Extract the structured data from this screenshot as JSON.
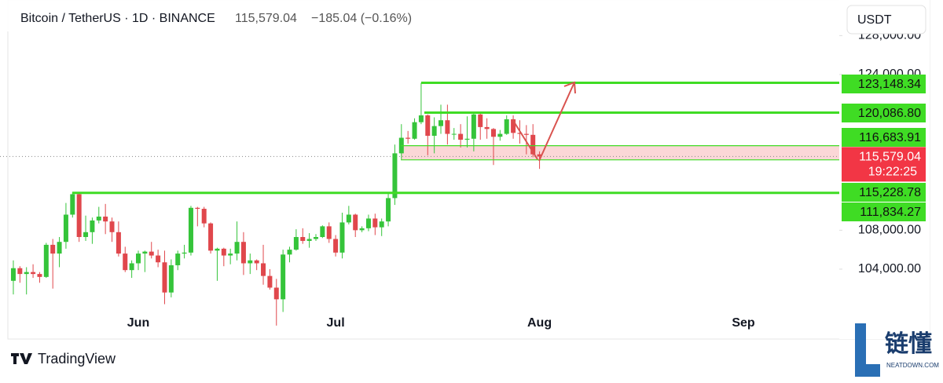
{
  "chart_data": {
    "type": "candlestick",
    "title": "Bitcoin / TetherUS · 1D · BINANCE",
    "change": "−185.04 (−0.16%)",
    "currency": "USDT",
    "brand": "TradingView",
    "watermark": "链懂",
    "watermark_sub": "NEATDOWN.COM",
    "up_color": "#35c43a",
    "down_color": "#e0474c",
    "level_color": "#3fdc24",
    "current_color": "#f23645",
    "current_price": {
      "value": 115579.04,
      "label": "115,579.04",
      "countdown": "19:22:25"
    },
    "levels": [
      {
        "value": 123148.34,
        "label": "123,148.34"
      },
      {
        "value": 120086.8,
        "label": "120,086.80"
      },
      {
        "value": 116683.91,
        "label": "116,683.91"
      },
      {
        "value": 115228.78,
        "label": "115,228.78"
      },
      {
        "value": 111834.27,
        "label": "111,834.27"
      }
    ],
    "zone": [
      115228.78,
      116683.91
    ],
    "ylim": [
      99800,
      128430
    ],
    "yticks": [
      {
        "value": 104000,
        "label": "104,000.00"
      },
      {
        "value": 108000,
        "label": "108,000.00"
      },
      {
        "value": 124000,
        "label": "124,000.00"
      },
      {
        "value": 128000,
        "label": "128,000.00"
      }
    ],
    "categories": [
      null,
      null,
      null,
      null,
      null,
      null,
      null,
      null,
      null,
      null,
      null,
      null,
      null,
      null,
      null,
      null,
      null,
      null,
      null,
      "Jun",
      null,
      null,
      null,
      null,
      null,
      null,
      null,
      null,
      null,
      null,
      null,
      null,
      null,
      null,
      null,
      null,
      null,
      null,
      null,
      null,
      null,
      null,
      null,
      null,
      null,
      null,
      null,
      null,
      null,
      "Jul",
      null,
      null,
      null,
      null,
      null,
      null,
      null,
      null,
      null,
      null,
      null,
      null,
      null,
      null,
      null,
      null,
      null,
      null,
      null,
      null,
      null,
      null,
      null,
      null,
      null,
      null,
      null,
      null,
      null,
      null,
      "Aug",
      null,
      null,
      null,
      null,
      null,
      null,
      null,
      null,
      null,
      null,
      null,
      null,
      null,
      null,
      null,
      null,
      null,
      null,
      null,
      null,
      null,
      null,
      null,
      null,
      null,
      null,
      null,
      null,
      null,
      null,
      "Sep",
      null,
      null,
      null,
      null,
      null,
      null,
      null,
      null,
      null,
      null,
      null,
      null,
      null,
      null
    ],
    "open": [
      102800,
      104100,
      103500,
      103700,
      103500,
      103200,
      106500,
      105600,
      106800,
      109600,
      111700,
      107300,
      107800,
      109000,
      109400,
      108900,
      107800,
      105600,
      103900,
      104600,
      105600,
      105800,
      105400,
      104700,
      101600,
      104400,
      105600,
      105700,
      110300,
      110200,
      108700,
      105900,
      106100,
      105400,
      105600,
      106800,
      104600,
      104900,
      104600,
      103300,
      102100,
      100900,
      105500,
      106000,
      107300,
      106900,
      107100,
      107300,
      108400,
      107100,
      105700,
      108800,
      109600,
      108000,
      108200,
      109200,
      108300,
      108900,
      111300,
      115900,
      117500,
      117400,
      119100,
      119800,
      117700,
      118700,
      119300,
      117900,
      117900,
      117300,
      117400,
      119900,
      118600,
      118400,
      117600,
      117900,
      119400,
      118000,
      117900,
      117800,
      115800,
      null,
      null,
      null,
      null,
      null,
      null,
      null,
      null,
      null,
      null,
      null,
      null,
      null,
      null,
      null,
      null,
      null,
      null,
      null,
      null,
      null,
      null,
      null,
      null,
      null,
      null,
      null,
      null,
      null,
      null,
      null,
      null,
      null,
      null,
      null,
      null,
      null,
      null,
      null,
      null,
      null,
      null,
      null,
      null,
      null
    ],
    "high": [
      104900,
      104300,
      104200,
      104500,
      103700,
      106700,
      107100,
      107300,
      110800,
      111900,
      111800,
      109500,
      109300,
      110400,
      110700,
      109300,
      108900,
      106300,
      104900,
      105900,
      105900,
      106800,
      106000,
      105900,
      105000,
      105900,
      106500,
      110500,
      110400,
      110400,
      108800,
      106200,
      106200,
      106100,
      108900,
      107800,
      105600,
      105000,
      106500,
      104000,
      103000,
      106000,
      106300,
      108100,
      108200,
      107700,
      107600,
      108500,
      108800,
      107500,
      109800,
      110500,
      109700,
      108400,
      109600,
      109700,
      109200,
      111900,
      116800,
      118900,
      118200,
      119500,
      123148.34,
      119900,
      119600,
      120900,
      120900,
      118500,
      118900,
      119700,
      120200,
      120100,
      119500,
      118500,
      118300,
      119800,
      119800,
      119300,
      118800,
      118900,
      116100,
      null,
      null,
      null,
      null,
      null,
      null,
      null,
      null,
      null,
      null,
      null,
      null,
      null,
      null,
      null,
      null,
      null,
      null,
      null,
      null,
      null,
      null,
      null,
      null,
      null,
      null,
      null,
      null,
      null,
      null,
      null,
      null,
      null,
      null,
      null,
      null,
      null,
      null,
      null,
      null,
      null,
      null,
      null,
      null,
      null
    ],
    "low": [
      101400,
      102600,
      101400,
      103100,
      102600,
      103100,
      102000,
      104200,
      106100,
      109300,
      106800,
      106900,
      106600,
      108700,
      107600,
      106800,
      105300,
      103700,
      103100,
      103900,
      103700,
      105100,
      104200,
      100400,
      101100,
      103900,
      105100,
      105400,
      108400,
      108300,
      105600,
      102800,
      104300,
      104500,
      104900,
      103400,
      103500,
      103900,
      102400,
      101900,
      98200,
      99600,
      104700,
      105900,
      106600,
      106200,
      106900,
      107200,
      106700,
      105300,
      105100,
      108600,
      107300,
      107800,
      107900,
      107500,
      107400,
      108400,
      110600,
      115300,
      116900,
      117300,
      118900,
      115700,
      115900,
      117900,
      116800,
      117300,
      116500,
      116500,
      116100,
      117300,
      117400,
      114700,
      117200,
      117800,
      117400,
      116900,
      115800,
      115500,
      114300,
      null,
      null,
      null,
      null,
      null,
      null,
      null,
      null,
      null,
      null,
      null,
      null,
      null,
      null,
      null,
      null,
      null,
      null,
      null,
      null,
      null,
      null,
      null,
      null,
      null,
      null,
      null,
      null,
      null,
      null,
      null,
      null,
      null,
      null,
      null,
      null,
      null,
      null,
      null,
      null,
      null,
      null,
      null,
      null,
      null
    ],
    "close": [
      104100,
      103500,
      103700,
      103500,
      103200,
      106500,
      105600,
      106800,
      109600,
      111700,
      107300,
      107800,
      109000,
      109400,
      108900,
      107800,
      105600,
      103900,
      104600,
      105600,
      105800,
      105400,
      104700,
      101600,
      104400,
      105600,
      105700,
      110300,
      110200,
      108700,
      105900,
      106100,
      105400,
      105600,
      106800,
      104600,
      104900,
      104600,
      103300,
      102100,
      100900,
      105500,
      106000,
      107300,
      106900,
      107100,
      107300,
      108400,
      107100,
      105700,
      108800,
      109600,
      108000,
      108200,
      109200,
      108300,
      108900,
      111300,
      115900,
      117500,
      117400,
      119100,
      119800,
      117700,
      118700,
      119300,
      117900,
      117900,
      117300,
      117400,
      119900,
      118600,
      118400,
      117600,
      117900,
      119400,
      118000,
      117900,
      117800,
      115800,
      115579.04,
      null,
      null,
      null,
      null,
      null,
      null,
      null,
      null,
      null,
      null,
      null,
      null,
      null,
      null,
      null,
      null,
      null,
      null,
      null,
      null,
      null,
      null,
      null,
      null,
      null,
      null,
      null,
      null,
      null,
      null,
      null,
      null,
      null,
      null,
      null,
      null,
      null,
      null,
      null,
      null,
      null,
      null,
      null,
      null,
      null
    ]
  }
}
